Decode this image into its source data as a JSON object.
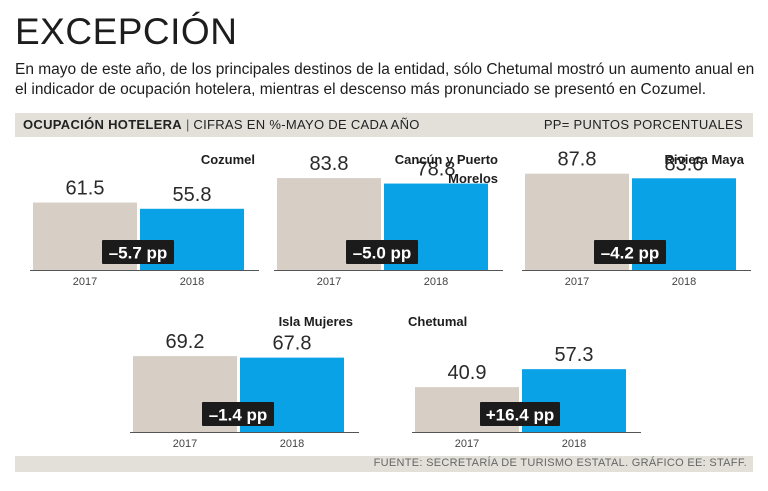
{
  "header": {
    "title": "EXCEPCIÓN",
    "subtitle": "En mayo de este año, de los principales destinos de la entidad, sólo Chetumal mostró un aumento anual en el indicador de ocupación hotelera, mientras el descenso más pronunciado se presentó en Cozumel."
  },
  "legend_bar": {
    "label_bold": "OCUPACIÓN HOTELERA",
    "separator": "|",
    "label_units": "CIFRAS EN %-MAYO DE CADA AÑO",
    "note": "PP= PUNTOS PORCENTUALES"
  },
  "footer": {
    "source": "FUENTE: SECRETARÍA DE TURISMO ESTATAL. GRÁFICO EE: STAFF."
  },
  "colors": {
    "bar_2017": "#d7cfc6",
    "bar_2018": "#0aa2e6",
    "badge": "#1b1b1b",
    "baseline": "#555555"
  },
  "chart_data": [
    {
      "type": "bar",
      "title": "Cozumel",
      "categories": [
        "2017",
        "2018"
      ],
      "values": [
        61.5,
        55.8
      ],
      "value_labels": [
        "61.5",
        "55.8"
      ],
      "change_label": "–5.7 pp",
      "ylim": [
        0,
        100
      ]
    },
    {
      "type": "bar",
      "title": "Cancún y Puerto Morelos",
      "title_lines": [
        "Cancún y Puerto",
        "Morelos"
      ],
      "categories": [
        "2017",
        "2018"
      ],
      "values": [
        83.8,
        78.8
      ],
      "value_labels": [
        "83.8",
        "78.8"
      ],
      "change_label": "–5.0 pp",
      "ylim": [
        0,
        100
      ]
    },
    {
      "type": "bar",
      "title": "Riviera Maya",
      "categories": [
        "2017",
        "2018"
      ],
      "values": [
        87.8,
        83.6
      ],
      "value_labels": [
        "87.8",
        "83.6"
      ],
      "change_label": "–4.2 pp",
      "ylim": [
        0,
        100
      ]
    },
    {
      "type": "bar",
      "title": "Isla Mujeres",
      "categories": [
        "2017",
        "2018"
      ],
      "values": [
        69.2,
        67.8
      ],
      "value_labels": [
        "69.2",
        "67.8"
      ],
      "change_label": "–1.4 pp",
      "ylim": [
        0,
        100
      ]
    },
    {
      "type": "bar",
      "title": "Chetumal",
      "categories": [
        "2017",
        "2018"
      ],
      "values": [
        40.9,
        57.3
      ],
      "value_labels": [
        "40.9",
        "57.3"
      ],
      "change_label": "+16.4 pp",
      "ylim": [
        0,
        100
      ]
    }
  ]
}
